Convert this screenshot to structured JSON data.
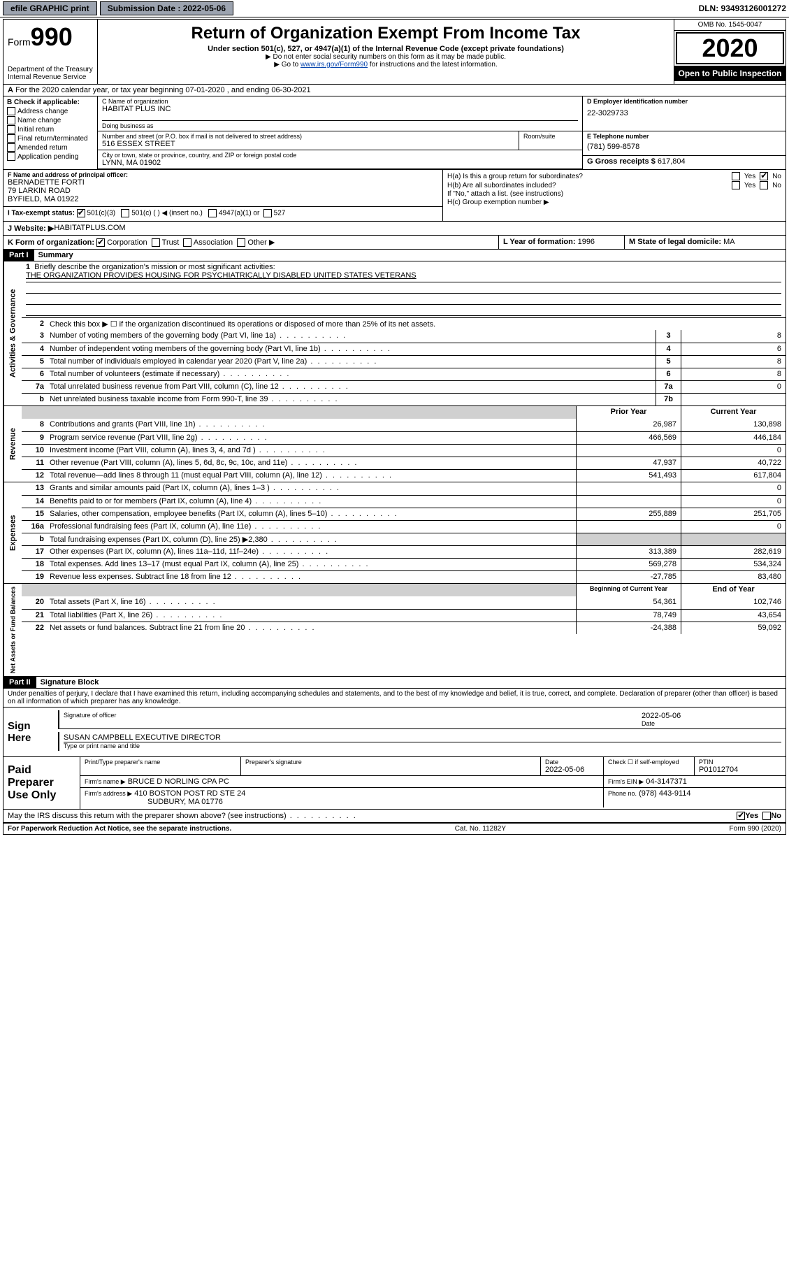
{
  "topbar": {
    "efile_label": "efile GRAPHIC print",
    "submission_label": "Submission Date : 2022-05-06",
    "dln_label": "DLN: 93493126001272"
  },
  "header": {
    "form_prefix": "Form",
    "form_number": "990",
    "dept": "Department of the Treasury\nInternal Revenue Service",
    "title": "Return of Organization Exempt From Income Tax",
    "subtitle": "Under section 501(c), 527, or 4947(a)(1) of the Internal Revenue Code (except private foundations)",
    "note1": "▶ Do not enter social security numbers on this form as it may be made public.",
    "note2_pre": "▶ Go to ",
    "note2_link": "www.irs.gov/Form990",
    "note2_post": " for instructions and the latest information.",
    "omb": "OMB No. 1545-0047",
    "year": "2020",
    "open_public": "Open to Public Inspection"
  },
  "row_a": "For the 2020 calendar year, or tax year beginning 07-01-2020    , and ending 06-30-2021",
  "box_b": {
    "label": "B Check if applicable:",
    "items": [
      "Address change",
      "Name change",
      "Initial return",
      "Final return/terminated",
      "Amended return",
      "Application pending"
    ]
  },
  "box_c": {
    "name_label": "C Name of organization",
    "name": "HABITAT PLUS INC",
    "dba_label": "Doing business as",
    "street_label": "Number and street (or P.O. box if mail is not delivered to street address)",
    "street": "516 ESSEX STREET",
    "room_label": "Room/suite",
    "city_label": "City or town, state or province, country, and ZIP or foreign postal code",
    "city": "LYNN, MA  01902"
  },
  "box_d": {
    "label": "D Employer identification number",
    "value": "22-3029733"
  },
  "box_e": {
    "label": "E Telephone number",
    "value": "(781) 599-8578"
  },
  "box_g": {
    "label": "G Gross receipts $",
    "value": "617,804"
  },
  "box_f": {
    "label": "F  Name and address of principal officer:",
    "name": "BERNADETTE FORTI",
    "addr1": "79 LARKIN ROAD",
    "addr2": "BYFIELD, MA  01922"
  },
  "box_h": {
    "ha": "H(a)  Is this a group return for subordinates?",
    "hb": "H(b)  Are all subordinates included?",
    "hb_note": "If \"No,\" attach a list. (see instructions)",
    "hc": "H(c)  Group exemption number ▶",
    "yes": "Yes",
    "no": "No"
  },
  "tax_status": {
    "label": "I   Tax-exempt status:",
    "opt1": "501(c)(3)",
    "opt2": "501(c) (  ) ◀ (insert no.)",
    "opt3": "4947(a)(1) or",
    "opt4": "527"
  },
  "website": {
    "label": "J   Website: ▶ ",
    "value": "HABITATPLUS.COM"
  },
  "klm": {
    "k": "K Form of organization:",
    "k_opts": [
      "Corporation",
      "Trust",
      "Association",
      "Other ▶"
    ],
    "l_label": "L Year of formation:",
    "l_val": "1996",
    "m_label": "M State of legal domicile:",
    "m_val": "MA"
  },
  "part1": {
    "title": "Part I",
    "subtitle": "Summary",
    "q1": "Briefly describe the organization's mission or most significant activities:",
    "mission": "THE ORGANIZATION PROVIDES HOUSING FOR PSYCHIATRICALLY DISABLED UNITED STATES VETERANS",
    "q2": "Check this box ▶ ☐  if the organization discontinued its operations or disposed of more than 25% of its net assets.",
    "rows_single": [
      {
        "n": "3",
        "t": "Number of voting members of the governing body (Part VI, line 1a)",
        "c": "3",
        "v": "8"
      },
      {
        "n": "4",
        "t": "Number of independent voting members of the governing body (Part VI, line 1b)",
        "c": "4",
        "v": "6"
      },
      {
        "n": "5",
        "t": "Total number of individuals employed in calendar year 2020 (Part V, line 2a)",
        "c": "5",
        "v": "8"
      },
      {
        "n": "6",
        "t": "Total number of volunteers (estimate if necessary)",
        "c": "6",
        "v": "8"
      },
      {
        "n": "7a",
        "t": "Total unrelated business revenue from Part VIII, column (C), line 12",
        "c": "7a",
        "v": "0"
      },
      {
        "n": "b",
        "t": "Net unrelated business taxable income from Form 990-T, line 39",
        "c": "7b",
        "v": ""
      }
    ],
    "tab_gov": "Activities & Governance",
    "tab_rev": "Revenue",
    "tab_exp": "Expenses",
    "tab_net": "Net Assets or Fund Balances",
    "col_prior": "Prior Year",
    "col_curr": "Current Year",
    "col_beg": "Beginning of Current Year",
    "col_end": "End of Year",
    "revenue": [
      {
        "n": "8",
        "t": "Contributions and grants (Part VIII, line 1h)",
        "p": "26,987",
        "c": "130,898"
      },
      {
        "n": "9",
        "t": "Program service revenue (Part VIII, line 2g)",
        "p": "466,569",
        "c": "446,184"
      },
      {
        "n": "10",
        "t": "Investment income (Part VIII, column (A), lines 3, 4, and 7d )",
        "p": "",
        "c": "0"
      },
      {
        "n": "11",
        "t": "Other revenue (Part VIII, column (A), lines 5, 6d, 8c, 9c, 10c, and 11e)",
        "p": "47,937",
        "c": "40,722"
      },
      {
        "n": "12",
        "t": "Total revenue—add lines 8 through 11 (must equal Part VIII, column (A), line 12)",
        "p": "541,493",
        "c": "617,804"
      }
    ],
    "expenses": [
      {
        "n": "13",
        "t": "Grants and similar amounts paid (Part IX, column (A), lines 1–3 )",
        "p": "",
        "c": "0"
      },
      {
        "n": "14",
        "t": "Benefits paid to or for members (Part IX, column (A), line 4)",
        "p": "",
        "c": "0"
      },
      {
        "n": "15",
        "t": "Salaries, other compensation, employee benefits (Part IX, column (A), lines 5–10)",
        "p": "255,889",
        "c": "251,705"
      },
      {
        "n": "16a",
        "t": "Professional fundraising fees (Part IX, column (A), line 11e)",
        "p": "",
        "c": "0"
      },
      {
        "n": "b",
        "t": "Total fundraising expenses (Part IX, column (D), line 25) ▶2,380",
        "p": "shade",
        "c": "shade"
      },
      {
        "n": "17",
        "t": "Other expenses (Part IX, column (A), lines 11a–11d, 11f–24e)",
        "p": "313,389",
        "c": "282,619"
      },
      {
        "n": "18",
        "t": "Total expenses. Add lines 13–17 (must equal Part IX, column (A), line 25)",
        "p": "569,278",
        "c": "534,324"
      },
      {
        "n": "19",
        "t": "Revenue less expenses. Subtract line 18 from line 12",
        "p": "-27,785",
        "c": "83,480"
      }
    ],
    "netassets": [
      {
        "n": "20",
        "t": "Total assets (Part X, line 16)",
        "p": "54,361",
        "c": "102,746"
      },
      {
        "n": "21",
        "t": "Total liabilities (Part X, line 26)",
        "p": "78,749",
        "c": "43,654"
      },
      {
        "n": "22",
        "t": "Net assets or fund balances. Subtract line 21 from line 20",
        "p": "-24,388",
        "c": "59,092"
      }
    ]
  },
  "part2": {
    "title": "Part II",
    "subtitle": "Signature Block",
    "declaration": "Under penalties of perjury, I declare that I have examined this return, including accompanying schedules and statements, and to the best of my knowledge and belief, it is true, correct, and complete. Declaration of preparer (other than officer) is based on all information of which preparer has any knowledge."
  },
  "sign": {
    "label": "Sign Here",
    "sig_officer": "Signature of officer",
    "date_label": "Date",
    "date": "2022-05-06",
    "name": "SUSAN CAMPBELL  EXECUTIVE DIRECTOR",
    "name_label": "Type or print name and title"
  },
  "prep": {
    "label": "Paid Preparer Use Only",
    "h_print": "Print/Type preparer's name",
    "h_sig": "Preparer's signature",
    "h_date": "Date",
    "date": "2022-05-06",
    "h_check": "Check ☐ if self-employed",
    "h_ptin": "PTIN",
    "ptin": "P01012704",
    "firm_name_label": "Firm's name      ▶",
    "firm_name": "BRUCE D NORLING CPA PC",
    "firm_ein_label": "Firm's EIN ▶",
    "firm_ein": "04-3147371",
    "firm_addr_label": "Firm's address ▶",
    "firm_addr1": "410 BOSTON POST RD STE 24",
    "firm_addr2": "SUDBURY, MA  01776",
    "phone_label": "Phone no.",
    "phone": "(978) 443-9114"
  },
  "discuss": {
    "text": "May the IRS discuss this return with the preparer shown above? (see instructions)",
    "yes": "Yes",
    "no": "No"
  },
  "footer": {
    "left": "For Paperwork Reduction Act Notice, see the separate instructions.",
    "mid": "Cat. No. 11282Y",
    "right": "Form 990 (2020)"
  }
}
